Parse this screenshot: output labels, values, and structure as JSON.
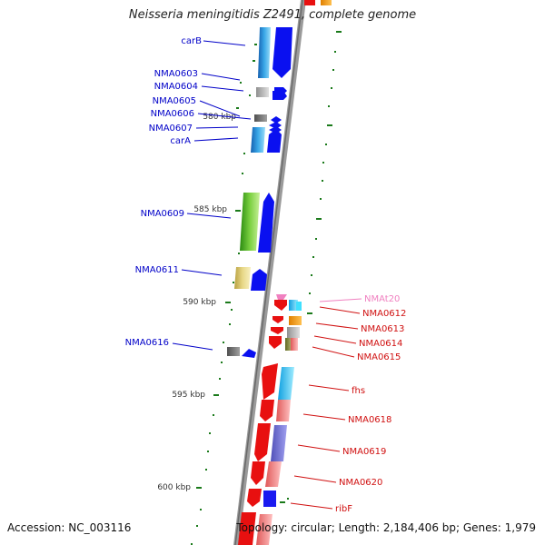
{
  "title": "Neisseria meningitidis Z2491, complete genome",
  "accession_text": "Accession: NC_003116",
  "topology_text": "Topology: circular; Length: 2,184,406 bp; Genes: 1,979",
  "scale_labels": [
    "580 kbp",
    "585 kbp",
    "590 kbp",
    "595 kbp",
    "600 kbp"
  ],
  "colors": {
    "forward_label": "#0000c8",
    "reverse_label": "#d01010",
    "rna_label": "#f080c0",
    "tick": "#1a7a1a",
    "backbone": "#888888"
  },
  "forward_genes": [
    {
      "label": "carB",
      "color": "#0a2cf0",
      "id": "carB"
    },
    {
      "label": "NMA0603",
      "color": "#1a1aa0",
      "id": "nma0603"
    },
    {
      "label": "NMA0604",
      "color": "#1a1aa0",
      "id": "nma0604"
    },
    {
      "label": "NMA0605",
      "color": "#1a1aa0",
      "id": "nma0605"
    },
    {
      "label": "NMA0606",
      "color": "#1a1aa0",
      "id": "nma0606"
    },
    {
      "label": "NMA0607",
      "color": "#1a1aa0",
      "id": "nma0607"
    },
    {
      "label": "carA",
      "color": "#1a1aa0",
      "id": "carA"
    },
    {
      "label": "NMA0609",
      "color": "#1a1aa0",
      "id": "nma0609"
    },
    {
      "label": "NMA0611",
      "color": "#1a1aa0",
      "id": "nma0611"
    },
    {
      "label": "NMA0616",
      "color": "#1a1aa0",
      "id": "nma0616"
    }
  ],
  "reverse_genes": [
    {
      "label": "NMAt20",
      "id": "nmat20",
      "kind": "rna"
    },
    {
      "label": "NMA0612",
      "id": "nma0612",
      "kind": "cds"
    },
    {
      "label": "NMA0613",
      "id": "nma0613",
      "kind": "cds"
    },
    {
      "label": "NMA0614",
      "id": "nma0614",
      "kind": "cds"
    },
    {
      "label": "NMA0615",
      "id": "nma0615",
      "kind": "cds"
    },
    {
      "label": "fhs",
      "id": "fhs",
      "kind": "cds"
    },
    {
      "label": "NMA0618",
      "id": "nma0618",
      "kind": "cds"
    },
    {
      "label": "NMA0619",
      "id": "nma0619",
      "kind": "cds"
    },
    {
      "label": "NMA0620",
      "id": "nma0620",
      "kind": "cds"
    },
    {
      "label": "ribF",
      "id": "ribF",
      "kind": "cds"
    }
  ]
}
